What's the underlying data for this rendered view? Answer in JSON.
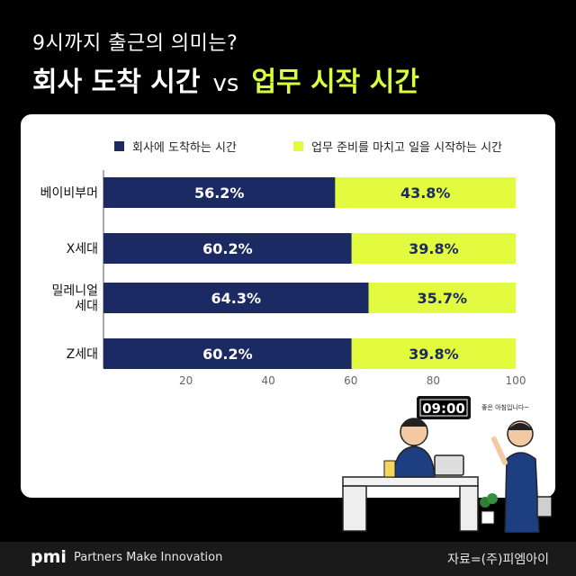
{
  "header": {
    "subtitle": "9시까지 출근의 의미는?",
    "title_left": "회사 도착 시간",
    "title_vs": "vs",
    "title_right": "업무 시작 시간"
  },
  "colors": {
    "navy": "#1c2a63",
    "lime": "#e3fb3e",
    "title_green": "#d8ff3c"
  },
  "chart_data": {
    "type": "bar",
    "orientation": "horizontal",
    "stacked": true,
    "categories": [
      [
        "베이비부머"
      ],
      [
        "X세대"
      ],
      [
        "밀레니얼",
        "세대"
      ],
      [
        "Z세대"
      ]
    ],
    "series": [
      {
        "name": "회사에 도착하는 시간",
        "values": [
          56.2,
          60.2,
          64.3,
          60.2
        ]
      },
      {
        "name": "업무 준비를 마치고 일을 시작하는 시간",
        "values": [
          43.8,
          39.8,
          35.7,
          39.8
        ]
      }
    ],
    "value_suffix": "%",
    "xlim": [
      0,
      100
    ],
    "xticks": [
      20,
      40,
      60,
      80,
      100
    ],
    "legend_position": "top",
    "grid": false
  },
  "illustration": {
    "clock": "09:00",
    "speech": "좋은 아침입니다~"
  },
  "footer": {
    "logo": "pmi",
    "tagline": "Partners Make Innovation",
    "source": "자료=(주)피엠아이"
  }
}
